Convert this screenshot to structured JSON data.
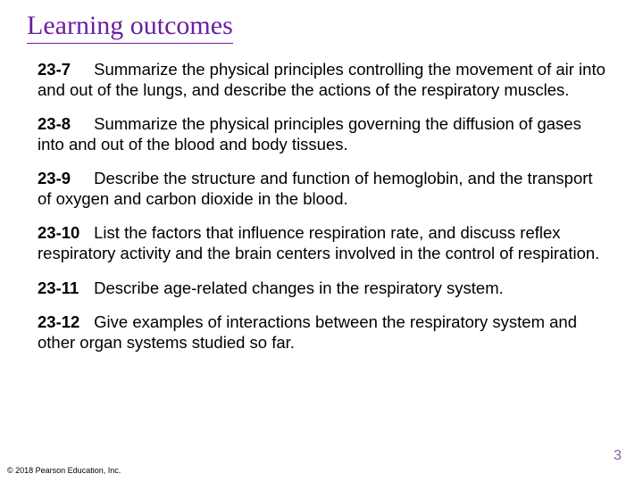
{
  "title": {
    "text": "Learning outcomes",
    "color": "#6b1fa0",
    "underline_color": "#6b1fa0"
  },
  "outcomes": [
    {
      "num": "23-7",
      "text": "Summarize the physical principles controlling the movement of air into and out of the lungs, and describe the actions of the respiratory muscles."
    },
    {
      "num": "23-8",
      "text": "Summarize the physical principles governing the diffusion of gases into and out of the blood and body tissues."
    },
    {
      "num": "23-9",
      "text": "Describe the structure and function of hemoglobin, and the transport of oxygen and carbon dioxide in the blood."
    },
    {
      "num": "23-10",
      "text": "List the factors that influence respiration rate, and discuss reflex respiratory activity and the brain centers involved in the control of respiration."
    },
    {
      "num": "23-11",
      "text": "Describe age-related changes in the respiratory system."
    },
    {
      "num": "23-12",
      "text": "Give examples of interactions between the respiratory system and other organ systems studied so far."
    }
  ],
  "page_number": "3",
  "page_number_color": "#8a5ca8",
  "copyright": "© 2018 Pearson Education, Inc."
}
